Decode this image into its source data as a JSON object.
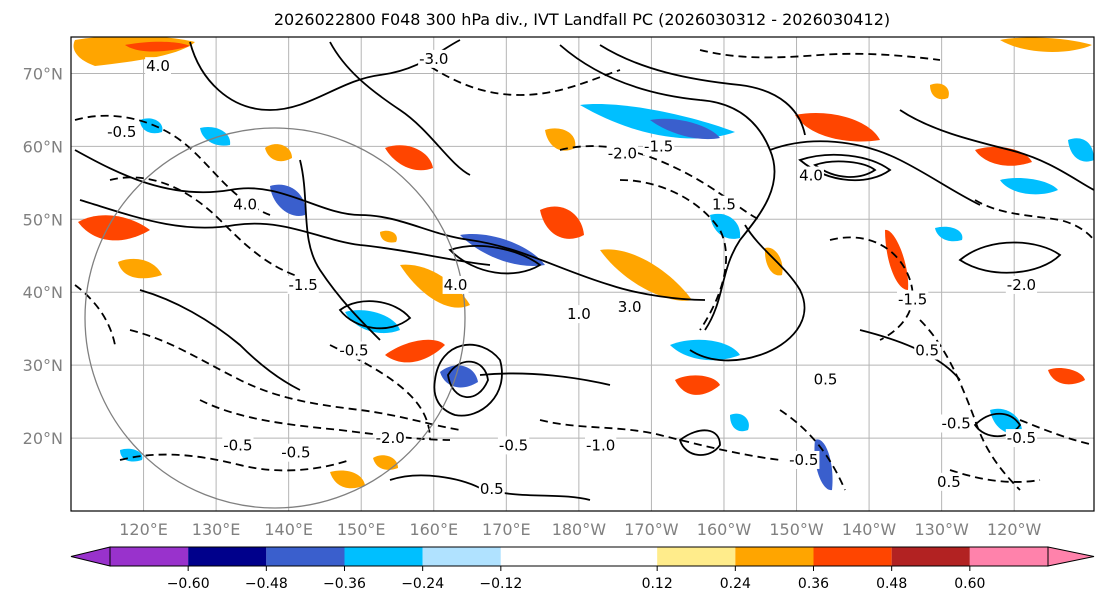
{
  "chart_data": {
    "type": "contour-map",
    "title": "2026022800 F048 300 hPa div., IVT Landfall PC (2026030312 - 2026030412)",
    "lat_ticks": [
      "70°N",
      "60°N",
      "50°N",
      "40°N",
      "30°N",
      "20°N"
    ],
    "lat_values": [
      70,
      60,
      50,
      40,
      30,
      20
    ],
    "lon_ticks": [
      "120°E",
      "130°E",
      "140°E",
      "150°E",
      "160°E",
      "170°E",
      "180°W",
      "170°W",
      "160°W",
      "150°W",
      "140°W",
      "130°W",
      "120°W"
    ],
    "lon_values": [
      120,
      130,
      140,
      150,
      160,
      170,
      180,
      190,
      200,
      210,
      220,
      230,
      240
    ],
    "xlim": [
      110,
      251
    ],
    "ylim": [
      10,
      75
    ],
    "grid": true,
    "colorbar": {
      "orientation": "horizontal",
      "extend": "both",
      "levels": [
        -0.72,
        -0.6,
        -0.48,
        -0.36,
        -0.24,
        -0.12,
        0.12,
        0.24,
        0.36,
        0.48,
        0.6,
        0.72
      ],
      "tick_labels": [
        "−0.60",
        "−0.48",
        "−0.36",
        "−0.24",
        "−0.12",
        "0.12",
        "0.24",
        "0.36",
        "0.48",
        "0.60"
      ],
      "tick_values": [
        -0.6,
        -0.48,
        -0.36,
        -0.24,
        -0.12,
        0.12,
        0.24,
        0.36,
        0.48,
        0.6
      ],
      "colors": [
        "#9932cc",
        "#00008b",
        "#3a5fcd",
        "#00bfff",
        "#b0e2ff",
        "#ffffff",
        "#ffec8b",
        "#ffa500",
        "#ff4500",
        "#b22222",
        "#ff82ab"
      ]
    },
    "contour_labels": [
      {
        "text": "4.0",
        "lon": 122,
        "lat": 71
      },
      {
        "text": "-0.5",
        "lon": 117,
        "lat": 62
      },
      {
        "text": "4.0",
        "lon": 134,
        "lat": 52
      },
      {
        "text": "-1.5",
        "lon": 142,
        "lat": 41
      },
      {
        "text": "-0.5",
        "lon": 149,
        "lat": 32
      },
      {
        "text": "-3.0",
        "lon": 160,
        "lat": 72
      },
      {
        "text": "4.0",
        "lon": 163,
        "lat": 41
      },
      {
        "text": "-2.0",
        "lon": 186,
        "lat": 59
      },
      {
        "text": "-1.5",
        "lon": 191,
        "lat": 60
      },
      {
        "text": "1.5",
        "lon": 200,
        "lat": 52
      },
      {
        "text": "4.0",
        "lon": 212,
        "lat": 56
      },
      {
        "text": "3.0",
        "lon": 187,
        "lat": 38
      },
      {
        "text": "1.0",
        "lon": 180,
        "lat": 37
      },
      {
        "text": "-2.0",
        "lon": 241,
        "lat": 41
      },
      {
        "text": "-1.5",
        "lon": 226,
        "lat": 39
      },
      {
        "text": "-0.5",
        "lon": 133,
        "lat": 19
      },
      {
        "text": "-0.5",
        "lon": 141,
        "lat": 18
      },
      {
        "text": "-2.0",
        "lon": 154,
        "lat": 20
      },
      {
        "text": "-0.5",
        "lon": 171,
        "lat": 19
      },
      {
        "text": "-1.0",
        "lon": 183,
        "lat": 19
      },
      {
        "text": "0.5",
        "lon": 168,
        "lat": 13
      },
      {
        "text": "-0.5",
        "lon": 211,
        "lat": 17
      },
      {
        "text": "0.5",
        "lon": 214,
        "lat": 28
      },
      {
        "text": "-0.5",
        "lon": 232,
        "lat": 22
      },
      {
        "text": "-0.5",
        "lon": 241,
        "lat": 20
      },
      {
        "text": "0.5",
        "lon": 231,
        "lat": 14
      },
      {
        "text": "0.5",
        "lon": 228,
        "lat": 32
      }
    ]
  }
}
